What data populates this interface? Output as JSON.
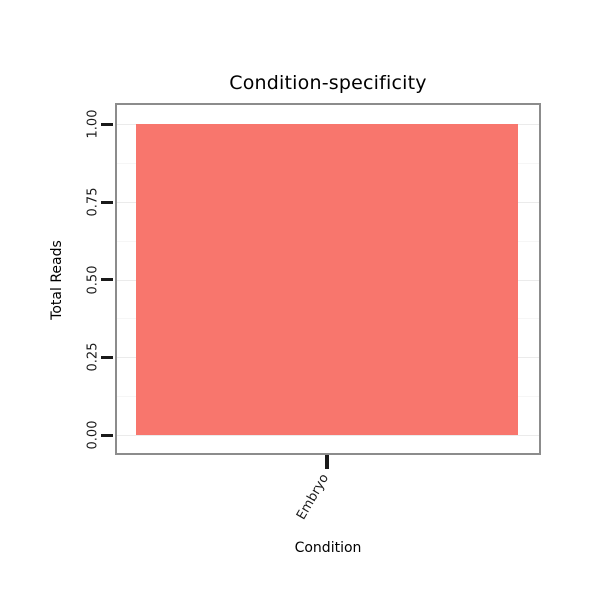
{
  "chart_data": {
    "type": "bar",
    "title": "Condition-specificity",
    "xlabel": "Condition",
    "ylabel": "Total Reads",
    "categories": [
      "Embryo"
    ],
    "values": [
      1.0
    ],
    "ylim": [
      0,
      1.0
    ],
    "yticks": [
      "0.00",
      "0.25",
      "0.50",
      "0.75",
      "1.00"
    ],
    "grid": "on",
    "legend": "none",
    "bar_color": "#F8766D",
    "panel_border_color": "#8c8c8c",
    "background_color": "#ffffff"
  }
}
